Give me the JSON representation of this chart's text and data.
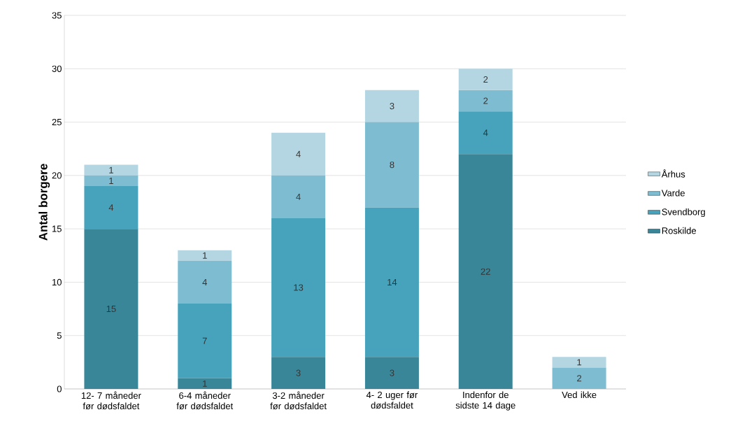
{
  "chart_data": {
    "type": "bar",
    "stacked": true,
    "ylabel": "**Antal borgere**",
    "categories": [
      "12- 7 måneder før dødsfaldet",
      "6-4 måneder før dødsfaldet",
      "3-2 måneder før dødsfaldet",
      "4- 2 uger før dødsfaldet",
      "Indenfor de sidste 14 dage",
      "Ved ikke"
    ],
    "series": [
      {
        "name": "Roskilde",
        "color": "#3a8699",
        "values": [
          15,
          1,
          3,
          3,
          22,
          null
        ]
      },
      {
        "name": "Svendborg",
        "color": "#46a3bb",
        "values": [
          4,
          7,
          13,
          14,
          4,
          null
        ]
      },
      {
        "name": "Varde",
        "color": "#7dbcd1",
        "values": [
          1,
          4,
          4,
          8,
          2,
          2
        ]
      },
      {
        "name": "Århus",
        "color": "#b3d6e2",
        "values": [
          1,
          1,
          4,
          3,
          2,
          1
        ]
      }
    ],
    "ylim": [
      0,
      35
    ],
    "yticks": [
      0,
      5,
      10,
      15,
      20,
      25,
      30,
      35
    ],
    "grid": "y",
    "legend": "right",
    "data_labels": true
  }
}
